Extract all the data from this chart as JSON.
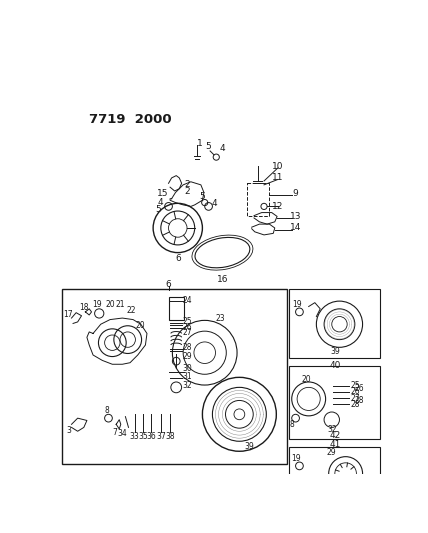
{
  "title": "7719 2000",
  "bg_color": "#ffffff",
  "line_color": "#1a1a1a",
  "fig_width": 4.28,
  "fig_height": 5.33,
  "dpi": 100
}
